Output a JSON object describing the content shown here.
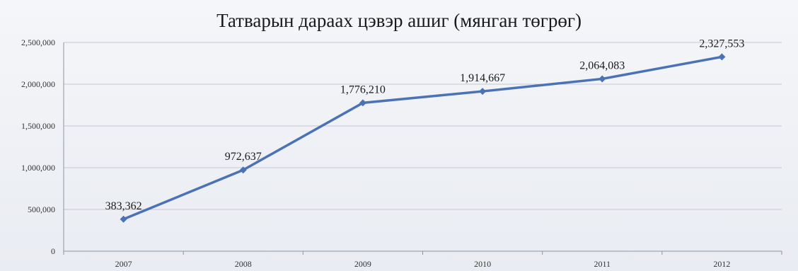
{
  "chart_data": {
    "type": "line",
    "title": "Татварын дараах цэвэр ашиг (мянган төгрөг)",
    "xlabel": "",
    "ylabel": "",
    "categories": [
      "2007",
      "2008",
      "2009",
      "2010",
      "2011",
      "2012"
    ],
    "series": [
      {
        "values": [
          383362,
          972637,
          1776210,
          1914667,
          2064083,
          2327553
        ],
        "value_labels": [
          "383,362",
          "972,637",
          "1,776,210",
          "1,914,667",
          "2,064,083",
          "2,327,553"
        ],
        "color": "#4a72b4"
      }
    ],
    "ylim": [
      0,
      2500000
    ],
    "yticks": [
      0,
      500000,
      1000000,
      1500000,
      2000000,
      2500000
    ],
    "ytick_labels": [
      "0",
      "500,000",
      "1,000,000",
      "1,500,000",
      "2,000,000",
      "2,500,000"
    ],
    "grid": true,
    "legend": "none"
  }
}
